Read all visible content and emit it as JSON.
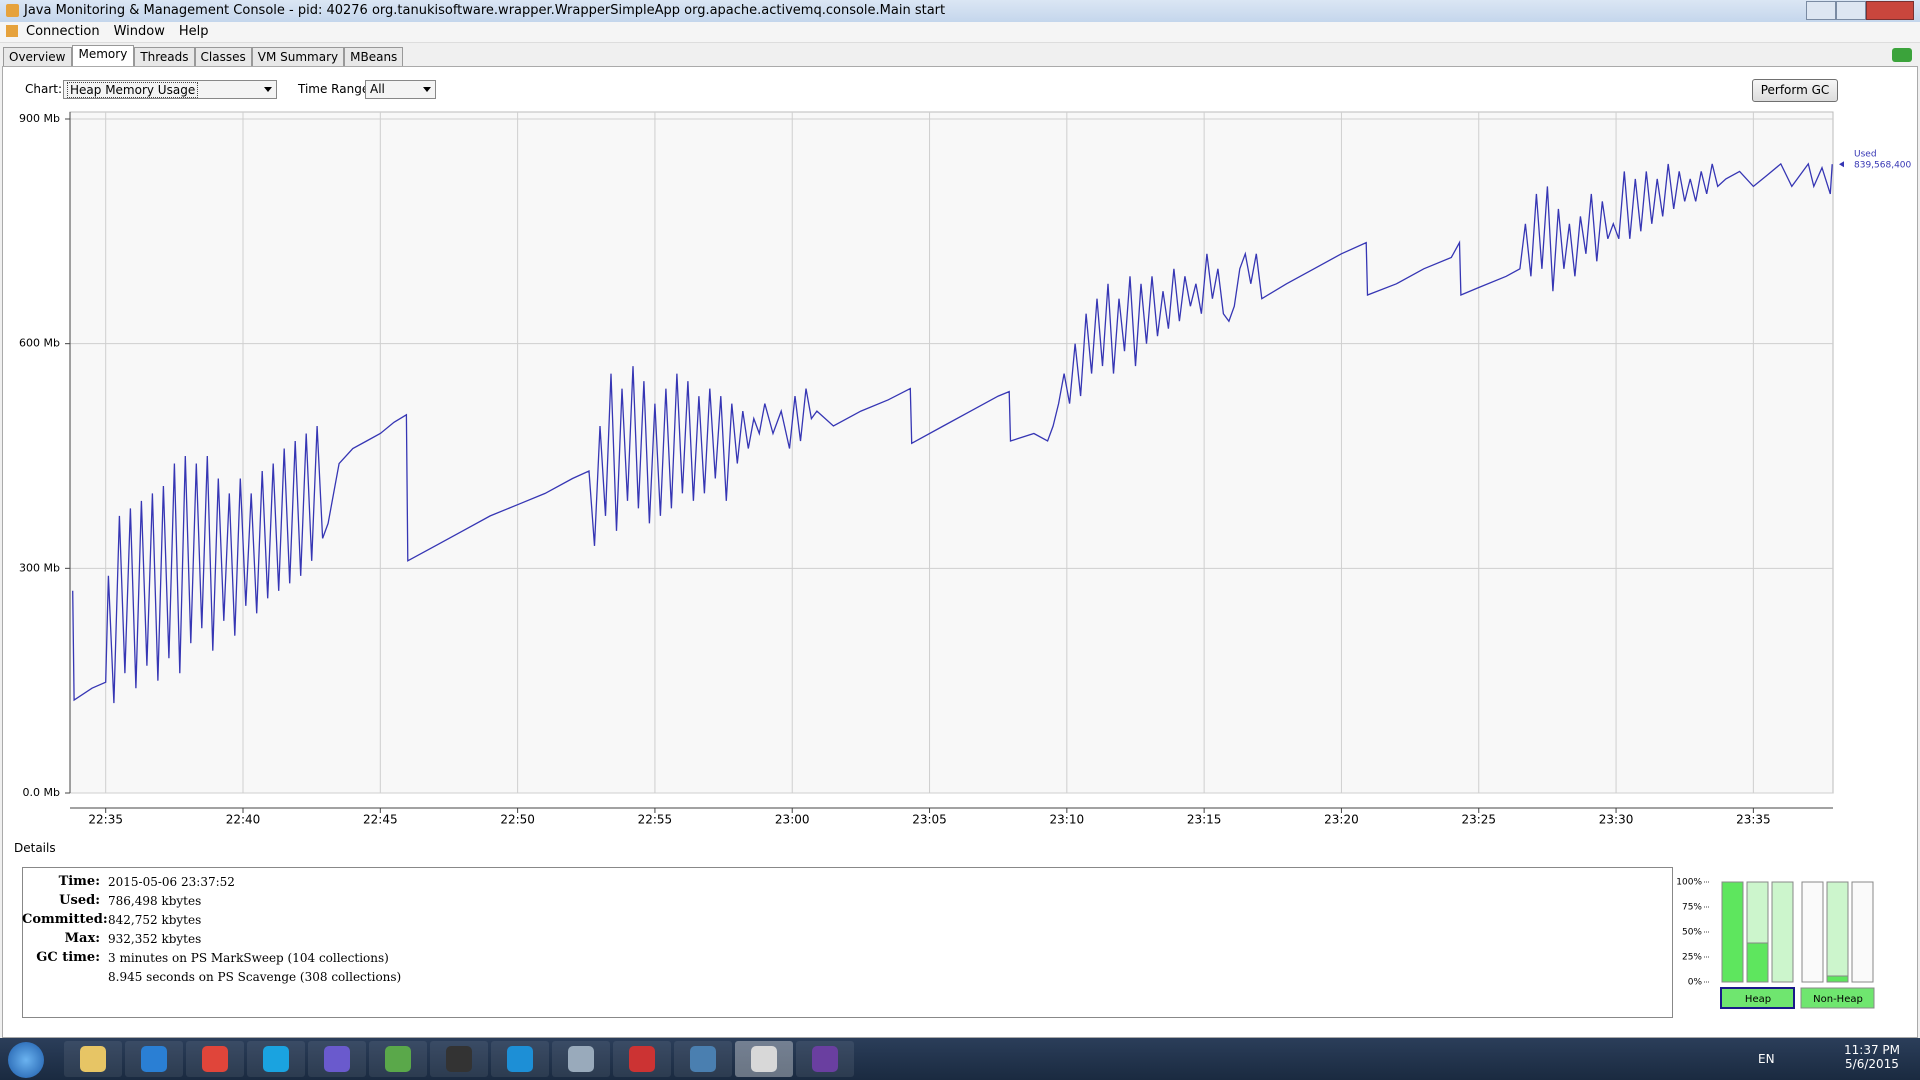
{
  "window": {
    "title": "Java Monitoring & Management Console - pid: 40276 org.tanukisoftware.wrapper.WrapperSimpleApp org.apache.activemq.console.Main start"
  },
  "menu": [
    "Connection",
    "Window",
    "Help"
  ],
  "tabs": [
    "Overview",
    "Memory",
    "Threads",
    "Classes",
    "VM Summary",
    "MBeans"
  ],
  "toolbar": {
    "chart_label": "Chart:",
    "chart_value": "Heap Memory Usage",
    "time_range_label": "Time Range:",
    "time_range_value": "All",
    "perform_gc": "Perform GC"
  },
  "chart_data": {
    "type": "line",
    "grid": true,
    "annotation": "839,568,400",
    "xlim": [
      1353.7,
      1417.9
    ],
    "ylim": [
      0,
      900
    ],
    "xticks": [
      {
        "value": 1355,
        "label": "22:35"
      },
      {
        "value": 1360,
        "label": "22:40"
      },
      {
        "value": 1365,
        "label": "22:45"
      },
      {
        "value": 1370,
        "label": "22:50"
      },
      {
        "value": 1375,
        "label": "22:55"
      },
      {
        "value": 1380,
        "label": "23:00"
      },
      {
        "value": 1385,
        "label": "23:05"
      },
      {
        "value": 1390,
        "label": "23:10"
      },
      {
        "value": 1395,
        "label": "23:15"
      },
      {
        "value": 1400,
        "label": "23:20"
      },
      {
        "value": 1405,
        "label": "23:25"
      },
      {
        "value": 1410,
        "label": "23:30"
      },
      {
        "value": 1415,
        "label": "23:35"
      }
    ],
    "yticks": [
      {
        "value": 0,
        "label": "0.0 Mb"
      },
      {
        "value": 300,
        "label": "300 Mb"
      },
      {
        "value": 600,
        "label": "600 Mb"
      },
      {
        "value": 900,
        "label": "900 Mb"
      }
    ],
    "x": [
      1353.8,
      1353.85,
      1354.5,
      1355.0,
      1355.1,
      1355.3,
      1355.5,
      1355.7,
      1355.9,
      1356.1,
      1356.3,
      1356.5,
      1356.7,
      1356.9,
      1357.1,
      1357.3,
      1357.5,
      1357.7,
      1357.9,
      1358.1,
      1358.3,
      1358.5,
      1358.7,
      1358.9,
      1359.1,
      1359.3,
      1359.5,
      1359.7,
      1359.9,
      1360.1,
      1360.3,
      1360.5,
      1360.7,
      1360.9,
      1361.1,
      1361.3,
      1361.5,
      1361.7,
      1361.9,
      1362.1,
      1362.3,
      1362.5,
      1362.7,
      1362.9,
      1363.1,
      1363.3,
      1363.5,
      1364.0,
      1364.5,
      1365.0,
      1365.5,
      1365.95,
      1366.0,
      1367,
      1368,
      1369,
      1370,
      1371,
      1372,
      1372.6,
      1372.8,
      1373.0,
      1373.2,
      1373.4,
      1373.6,
      1373.8,
      1374.0,
      1374.2,
      1374.4,
      1374.6,
      1374.8,
      1375.0,
      1375.2,
      1375.4,
      1375.6,
      1375.8,
      1376.0,
      1376.2,
      1376.4,
      1376.6,
      1376.8,
      1377.0,
      1377.2,
      1377.4,
      1377.6,
      1377.8,
      1378.0,
      1378.2,
      1378.4,
      1378.6,
      1378.8,
      1379.0,
      1379.3,
      1379.6,
      1379.9,
      1380.1,
      1380.3,
      1380.5,
      1380.7,
      1380.9,
      1381.5,
      1382.5,
      1383.5,
      1384.3,
      1384.35,
      1385.5,
      1386.5,
      1387.5,
      1387.9,
      1387.95,
      1388.8,
      1389.3,
      1389.5,
      1389.7,
      1389.9,
      1390.1,
      1390.3,
      1390.5,
      1390.7,
      1390.9,
      1391.1,
      1391.3,
      1391.5,
      1391.7,
      1391.9,
      1392.1,
      1392.3,
      1392.5,
      1392.7,
      1392.9,
      1393.1,
      1393.3,
      1393.5,
      1393.7,
      1393.9,
      1394.1,
      1394.3,
      1394.5,
      1394.7,
      1394.9,
      1395.1,
      1395.3,
      1395.5,
      1395.7,
      1395.9,
      1396.1,
      1396.3,
      1396.5,
      1396.7,
      1396.9,
      1397.1,
      1398,
      1399,
      1400,
      1400.9,
      1400.95,
      1402,
      1403,
      1404,
      1404.3,
      1404.35,
      1405,
      1406,
      1406.5,
      1406.7,
      1406.9,
      1407.1,
      1407.3,
      1407.5,
      1407.7,
      1407.9,
      1408.1,
      1408.3,
      1408.5,
      1408.7,
      1408.9,
      1409.1,
      1409.3,
      1409.5,
      1409.7,
      1409.9,
      1410.1,
      1410.3,
      1410.5,
      1410.7,
      1410.9,
      1411.1,
      1411.3,
      1411.5,
      1411.7,
      1411.9,
      1412.1,
      1412.3,
      1412.5,
      1412.7,
      1412.9,
      1413.1,
      1413.3,
      1413.5,
      1413.7,
      1414.0,
      1414.5,
      1415.0,
      1415.5,
      1416.0,
      1416.4,
      1416.8,
      1417.0,
      1417.2,
      1417.5,
      1417.8,
      1417.87
    ],
    "series": [
      {
        "name": "Used",
        "color": "#3636b4",
        "values": [
          270,
          124,
          140,
          148,
          290,
          120,
          370,
          160,
          380,
          140,
          390,
          170,
          400,
          150,
          410,
          180,
          440,
          160,
          450,
          200,
          440,
          220,
          450,
          190,
          420,
          230,
          400,
          210,
          420,
          250,
          400,
          240,
          430,
          260,
          440,
          270,
          460,
          280,
          470,
          290,
          480,
          310,
          490,
          340,
          360,
          400,
          440,
          460,
          470,
          480,
          495,
          505,
          310,
          330,
          350,
          370,
          385,
          400,
          420,
          430,
          330,
          490,
          370,
          560,
          350,
          540,
          390,
          570,
          380,
          550,
          360,
          520,
          370,
          540,
          380,
          560,
          400,
          550,
          390,
          530,
          400,
          540,
          420,
          530,
          390,
          520,
          440,
          510,
          460,
          500,
          480,
          520,
          480,
          510,
          460,
          530,
          470,
          540,
          500,
          510,
          490,
          510,
          525,
          540,
          467,
          490,
          510,
          530,
          536,
          470,
          480,
          470,
          490,
          520,
          560,
          520,
          600,
          530,
          640,
          560,
          660,
          570,
          680,
          560,
          660,
          590,
          690,
          570,
          680,
          600,
          690,
          610,
          670,
          620,
          700,
          630,
          690,
          650,
          680,
          640,
          720,
          660,
          700,
          640,
          630,
          650,
          700,
          720,
          680,
          720,
          660,
          680,
          700,
          720,
          735,
          665,
          680,
          700,
          715,
          735,
          665,
          675,
          690,
          700,
          760,
          690,
          800,
          700,
          810,
          670,
          780,
          700,
          760,
          690,
          770,
          720,
          800,
          710,
          790,
          740,
          760,
          740,
          830,
          740,
          820,
          750,
          830,
          760,
          820,
          770,
          840,
          780,
          830,
          790,
          820,
          790,
          830,
          800,
          840,
          810,
          820,
          830,
          810,
          825,
          840,
          810,
          830,
          840,
          810,
          835,
          800,
          839.6
        ]
      }
    ]
  },
  "details": {
    "label": "Details",
    "rows": [
      {
        "label": "Time:",
        "value": "2015-05-06 23:37:52"
      },
      {
        "label": "Used:",
        "value": "786,498 kbytes"
      },
      {
        "label": "Committed:",
        "value": "842,752 kbytes"
      },
      {
        "label": "Max:",
        "value": "932,352 kbytes"
      }
    ],
    "gc_time": {
      "label": "GC time:",
      "lines": [
        "3 minutes on PS MarkSweep (104 collections)",
        "8.945 seconds on PS Scavenge (308 collections)"
      ]
    }
  },
  "memory_pools": {
    "ylim": [
      0,
      100
    ],
    "yticks": [
      {
        "value": 0,
        "label": "0%"
      },
      {
        "value": 25,
        "label": "25%"
      },
      {
        "value": 50,
        "label": "50%"
      },
      {
        "value": 75,
        "label": "75%"
      },
      {
        "value": 100,
        "label": "100%"
      }
    ],
    "heap_label": "Heap",
    "heap": [
      100,
      39,
      0
    ],
    "non_heap_label": "Non-Heap",
    "non_heap": [
      0,
      6,
      0
    ]
  },
  "taskbar": {
    "language": "EN",
    "time": "11:37 PM",
    "date": "5/6/2015"
  }
}
